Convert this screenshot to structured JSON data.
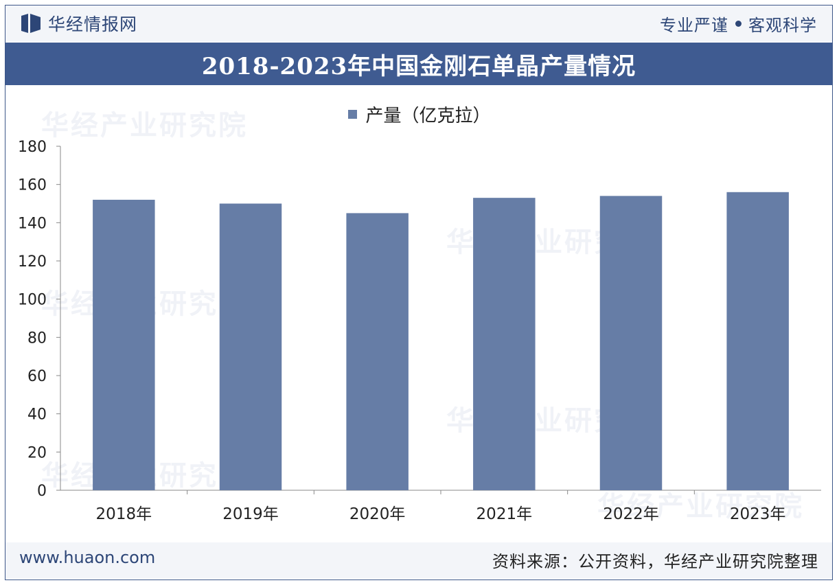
{
  "header": {
    "brand_name": "华经情报网",
    "motto_left": "专业严谨",
    "motto_right": "客观科学"
  },
  "watermark": "华经产业研究院",
  "footer": {
    "site": "www.huaon.com",
    "source": "资料来源：公开资料，华经产业研究院整理"
  },
  "colors": {
    "bar": "#667da6",
    "title_bg": "#3f5b91",
    "brand": "#2d4677"
  },
  "chart_data": {
    "type": "bar",
    "title": "2018-2023年中国金刚石单晶产量情况",
    "categories": [
      "2018年",
      "2019年",
      "2020年",
      "2021年",
      "2022年",
      "2023年"
    ],
    "series": [
      {
        "name": "产量（亿克拉）",
        "values": [
          152,
          150,
          145,
          153,
          154,
          156
        ]
      }
    ],
    "ylim": [
      0,
      180
    ],
    "yticks": [
      0,
      20,
      40,
      60,
      80,
      100,
      120,
      140,
      160,
      180
    ],
    "legend_position": "top-center",
    "grid": false
  }
}
